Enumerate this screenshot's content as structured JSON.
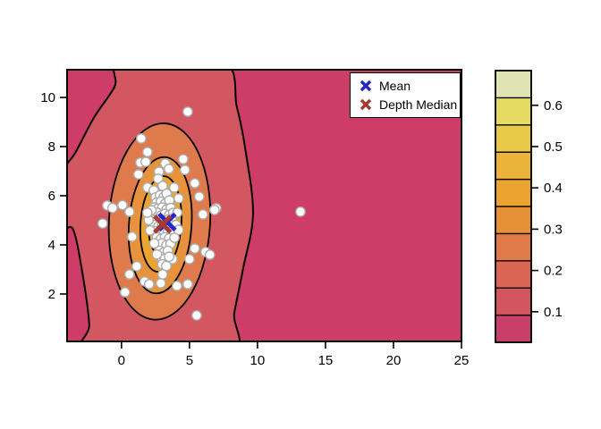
{
  "figure": {
    "background": "#ffffff"
  },
  "chart_data": {
    "type": "scatter",
    "subtype": "filled-contour-depth-plot",
    "title": "",
    "xlabel": "",
    "ylabel": "",
    "x_axis": {
      "ticks": [
        0,
        5,
        10,
        15,
        20,
        25
      ],
      "tick_labels": [
        "0",
        "5",
        "10",
        "15",
        "20",
        "25"
      ],
      "range": [
        -4.0,
        25.0
      ]
    },
    "y_axis": {
      "ticks": [
        2,
        4,
        6,
        8,
        10
      ],
      "tick_labels": [
        "2",
        "4",
        "6",
        "8",
        "10"
      ],
      "range": [
        0.07,
        11.13
      ]
    },
    "grid": false,
    "plot_background_color": "#CE3D68",
    "contour_line_color": "#000000",
    "contours": {
      "outer_polygon_level": 0.09,
      "outer_polygon": [
        [
          0.1,
          11.5
        ],
        [
          -0.5,
          10.44
        ],
        [
          -2.0,
          9.2
        ],
        [
          -3.36,
          7.78
        ],
        [
          -4.4,
          6.8
        ],
        [
          -4.4,
          4.8
        ],
        [
          -3.55,
          4.62
        ],
        [
          -2.9,
          2.95
        ],
        [
          -2.37,
          0.76
        ],
        [
          -2.5,
          -0.5
        ],
        [
          7.8,
          -0.5
        ],
        [
          8.3,
          1.24
        ],
        [
          8.95,
          3.05
        ],
        [
          9.67,
          5.24
        ],
        [
          9.14,
          7.78
        ],
        [
          8.49,
          9.6
        ],
        [
          7.37,
          11.5
        ]
      ],
      "outer_fill": "#D35761",
      "ellipses": [
        {
          "cx": 2.8,
          "cy": 4.95,
          "rx": 3.72,
          "ry": 4.0,
          "rot": 3,
          "fill": "#DF7A4C"
        },
        {
          "cx": 2.85,
          "cy": 4.8,
          "rx": 2.3,
          "ry": 2.78,
          "rot": 4,
          "fill": "#E8923B"
        },
        {
          "cx": 2.9,
          "cy": 4.85,
          "rx": 1.5,
          "ry": 1.95,
          "rot": 4,
          "fill": "#EBA42F"
        },
        {
          "cx": 2.95,
          "cy": 4.9,
          "rx": 0.95,
          "ry": 1.28,
          "rot": 4,
          "fill": "#EBB33A"
        },
        {
          "cx": 3.0,
          "cy": 5.3,
          "rx": 0.45,
          "ry": 0.72,
          "rot": 4,
          "fill": "#E9C948"
        }
      ]
    },
    "points_style": {
      "fill": "#ffffff",
      "stroke": "#ADADAD"
    },
    "points": [
      [
        13.16,
        5.35
      ],
      [
        4.87,
        9.42
      ],
      [
        5.53,
        1.13
      ],
      [
        -1.38,
        4.87
      ],
      [
        -1.05,
        5.6
      ],
      [
        -0.66,
        5.5
      ],
      [
        0.07,
        5.62
      ],
      [
        0.59,
        5.35
      ],
      [
        1.45,
        8.33
      ],
      [
        1.91,
        7.78
      ],
      [
        1.38,
        7.35
      ],
      [
        1.78,
        7.38
      ],
      [
        3.22,
        7.31
      ],
      [
        2.76,
        6.98
      ],
      [
        3.49,
        7.09
      ],
      [
        4.54,
        7.49
      ],
      [
        4.67,
        7.05
      ],
      [
        2.7,
        6.69
      ],
      [
        1.25,
        6.87
      ],
      [
        5.39,
        6.51
      ],
      [
        5.72,
        5.96
      ],
      [
        6.97,
        5.49
      ],
      [
        5.99,
        5.24
      ],
      [
        6.84,
        5.42
      ],
      [
        1.91,
        6.33
      ],
      [
        2.37,
        6.22
      ],
      [
        3.03,
        6.4
      ],
      [
        3.88,
        6.33
      ],
      [
        4.21,
        5.89
      ],
      [
        0.79,
        4.33
      ],
      [
        0.59,
        2.8
      ],
      [
        0.26,
        2.07
      ],
      [
        1.12,
        3.13
      ],
      [
        1.71,
        2.51
      ],
      [
        2.04,
        2.4
      ],
      [
        2.89,
        2.44
      ],
      [
        3.03,
        2.8
      ],
      [
        4.08,
        2.33
      ],
      [
        4.87,
        2.4
      ],
      [
        6.18,
        3.71
      ],
      [
        5.39,
        3.85
      ],
      [
        5.0,
        3.42
      ],
      [
        3.75,
        3.42
      ],
      [
        6.51,
        3.6
      ],
      [
        2.52,
        5.93
      ],
      [
        2.83,
        6.02
      ],
      [
        3.1,
        5.95
      ],
      [
        3.32,
        6.08
      ],
      [
        2.58,
        5.72
      ],
      [
        2.9,
        5.76
      ],
      [
        3.21,
        5.68
      ],
      [
        3.52,
        5.81
      ],
      [
        2.38,
        5.52
      ],
      [
        2.7,
        5.48
      ],
      [
        3.0,
        5.52
      ],
      [
        3.31,
        5.44
      ],
      [
        3.62,
        5.5
      ],
      [
        2.31,
        5.26
      ],
      [
        2.62,
        5.31
      ],
      [
        2.9,
        5.19
      ],
      [
        3.2,
        5.27
      ],
      [
        3.5,
        5.21
      ],
      [
        3.81,
        5.3
      ],
      [
        2.49,
        5.01
      ],
      [
        2.81,
        5.06
      ],
      [
        3.1,
        4.99
      ],
      [
        3.42,
        5.02
      ],
      [
        3.7,
        5.06
      ],
      [
        2.4,
        4.81
      ],
      [
        2.71,
        4.74
      ],
      [
        3.0,
        4.8
      ],
      [
        3.31,
        4.76
      ],
      [
        3.6,
        4.82
      ],
      [
        2.52,
        4.56
      ],
      [
        2.8,
        4.49
      ],
      [
        3.11,
        4.56
      ],
      [
        3.4,
        4.51
      ],
      [
        3.71,
        4.56
      ],
      [
        2.61,
        4.31
      ],
      [
        2.9,
        4.24
      ],
      [
        3.2,
        4.31
      ],
      [
        3.5,
        4.26
      ],
      [
        2.7,
        4.01
      ],
      [
        3.0,
        4.06
      ],
      [
        3.3,
        3.99
      ],
      [
        3.6,
        4.04
      ],
      [
        2.81,
        3.76
      ],
      [
        3.1,
        3.69
      ],
      [
        3.41,
        3.76
      ],
      [
        2.9,
        3.51
      ],
      [
        3.2,
        3.44
      ],
      [
        3.5,
        3.52
      ],
      [
        3.0,
        3.21
      ],
      [
        3.3,
        3.14
      ],
      [
        2.6,
        3.61
      ],
      [
        2.41,
        4.06
      ],
      [
        4.0,
        4.81
      ],
      [
        4.1,
        5.31
      ],
      [
        3.9,
        4.29
      ],
      [
        4.2,
        4.61
      ],
      [
        2.0,
        5.01
      ],
      [
        2.1,
        4.59
      ],
      [
        2.2,
        5.41
      ],
      [
        1.9,
        5.31
      ]
    ],
    "markers": {
      "mean": {
        "x": 3.36,
        "y": 4.93,
        "color": "#2525D2",
        "label": "Mean"
      },
      "depth_median": {
        "x": 3.02,
        "y": 4.84,
        "color": "#A33931",
        "label": "Depth Median"
      }
    },
    "colorbar": {
      "range": [
        0.026,
        0.684
      ],
      "tick_values": [
        0.1,
        0.2,
        0.3,
        0.4,
        0.5,
        0.6
      ],
      "tick_labels": [
        "0.1",
        "0.2",
        "0.3",
        "0.4",
        "0.5",
        "0.6"
      ],
      "band_colors_bottom_to_top": [
        "#C93F6C",
        "#D25560",
        "#DA6554",
        "#E07A48",
        "#E89036",
        "#EBA32F",
        "#EBB33A",
        "#E9C948",
        "#E3DB62",
        "#DFE4B5"
      ]
    }
  },
  "legend": {
    "items": [
      {
        "label": "Mean",
        "color": "#2525D2"
      },
      {
        "label": "Depth Median",
        "color": "#A33931"
      }
    ]
  }
}
